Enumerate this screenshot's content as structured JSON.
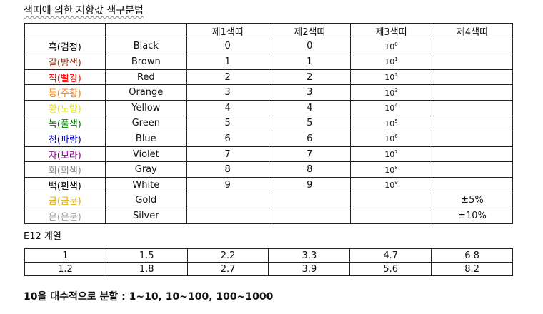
{
  "title": "색띠에 의한 저항값 색구분법",
  "resistor_table": {
    "headers": [
      "",
      "",
      "제1색띠",
      "제2색띠",
      "제3색띠",
      "제4색띠"
    ],
    "rows": [
      {
        "korean": "흑(검정)",
        "english": "Black",
        "color": "#000000",
        "band1": "0",
        "band2": "0",
        "mult_base": "10",
        "mult_exp": "0",
        "tolerance": ""
      },
      {
        "korean": "갈(밤색)",
        "english": "Brown",
        "color": "#8b3a1a",
        "band1": "1",
        "band2": "1",
        "mult_base": "10",
        "mult_exp": "1",
        "tolerance": ""
      },
      {
        "korean": "적(빨강)",
        "english": "Red",
        "color": "#ff0000",
        "band1": "2",
        "band2": "2",
        "mult_base": "10",
        "mult_exp": "2",
        "tolerance": ""
      },
      {
        "korean": "등(주황)",
        "english": "Orange",
        "color": "#ff8000",
        "band1": "3",
        "band2": "3",
        "mult_base": "10",
        "mult_exp": "3",
        "tolerance": ""
      },
      {
        "korean": "황(노랑)",
        "english": "Yellow",
        "color": "#e6e600",
        "band1": "4",
        "band2": "4",
        "mult_base": "10",
        "mult_exp": "4",
        "tolerance": ""
      },
      {
        "korean": "녹(풀색)",
        "english": "Green",
        "color": "#008000",
        "band1": "5",
        "band2": "5",
        "mult_base": "10",
        "mult_exp": "5",
        "tolerance": ""
      },
      {
        "korean": "청(파랑)",
        "english": "Blue",
        "color": "#0000cc",
        "band1": "6",
        "band2": "6",
        "mult_base": "10",
        "mult_exp": "6",
        "tolerance": ""
      },
      {
        "korean": "자(보라)",
        "english": "Violet",
        "color": "#8b008b",
        "band1": "7",
        "band2": "7",
        "mult_base": "10",
        "mult_exp": "7",
        "tolerance": ""
      },
      {
        "korean": "회(회색)",
        "english": "Gray",
        "color": "#8c8c8c",
        "band1": "8",
        "band2": "8",
        "mult_base": "10",
        "mult_exp": "8",
        "tolerance": ""
      },
      {
        "korean": "백(흰색)",
        "english": "White",
        "color": "#000000",
        "band1": "9",
        "band2": "9",
        "mult_base": "10",
        "mult_exp": "9",
        "tolerance": ""
      },
      {
        "korean": "금(금분)",
        "english": "Gold",
        "color": "#e0b000",
        "band1": "",
        "band2": "",
        "mult_base": "",
        "mult_exp": "",
        "tolerance": "±5%"
      },
      {
        "korean": "은(은분)",
        "english": "Silver",
        "color": "#a0a0a0",
        "band1": "",
        "band2": "",
        "mult_base": "",
        "mult_exp": "",
        "tolerance": "±10%"
      }
    ]
  },
  "e12": {
    "label": "E12 계열",
    "rows": [
      [
        "1",
        "1.5",
        "2.2",
        "3.3",
        "4.7",
        "6.8"
      ],
      [
        "1.2",
        "1.8",
        "2.7",
        "3.9",
        "5.6",
        "8.2"
      ]
    ]
  },
  "footer": "10을 대수적으로 분할 : 1~10, 10~100, 100~1000"
}
